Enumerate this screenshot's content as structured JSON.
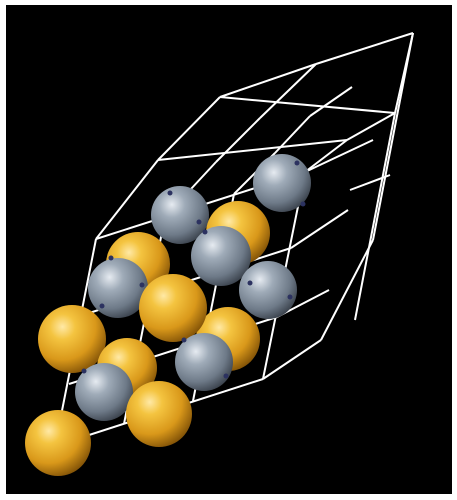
{
  "scene": {
    "title": "",
    "background_color": "#000000",
    "border_color": "#ffffff",
    "lattice_color": "#ffffff",
    "atom_types": [
      {
        "name": "gold-atom",
        "color": "#e0a020"
      },
      {
        "name": "silver-atom",
        "color": "#8a96a4"
      }
    ]
  }
}
